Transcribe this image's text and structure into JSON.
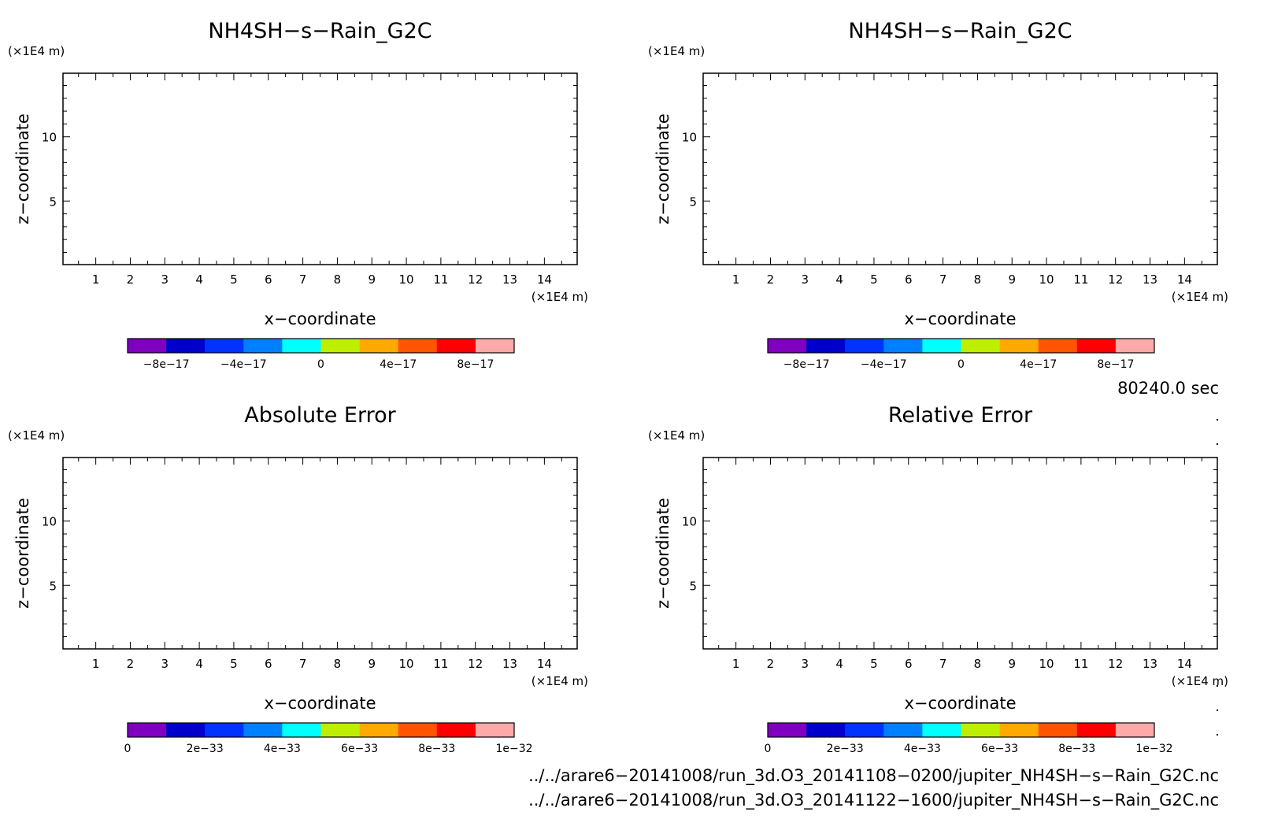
{
  "chart_data": [
    {
      "type": "heatmap",
      "title": "NH4SH−s−Rain_G2C",
      "xlabel": "x−coordinate",
      "ylabel": "z−coordinate",
      "x_unit": "(×1E4 m)",
      "y_unit": "(×1E4 m)",
      "xlim": [
        0.05,
        14.95
      ],
      "ylim": [
        0.05,
        14.95
      ],
      "x_ticks": [
        "1",
        "2",
        "3",
        "4",
        "5",
        "6",
        "7",
        "8",
        "9",
        "10",
        "11",
        "12",
        "13",
        "14"
      ],
      "y_ticks": [
        "5",
        "10"
      ],
      "grid": false,
      "values": [],
      "colorbar": {
        "colors": [
          "#7f00bf",
          "#0000cc",
          "#0033ff",
          "#0080ff",
          "#00ffff",
          "#bfef00",
          "#ffaa00",
          "#ff5500",
          "#ff0000",
          "#ffaaaa"
        ],
        "ticks": [
          "−8e−17",
          "−4e−17",
          "0",
          "4e−17",
          "8e−17"
        ],
        "tick_values": [
          -8e-17,
          -4e-17,
          0,
          4e-17,
          8e-17
        ],
        "range": [
          -1e-16,
          1e-16
        ]
      }
    },
    {
      "type": "heatmap",
      "title": "NH4SH−s−Rain_G2C",
      "xlabel": "x−coordinate",
      "ylabel": "z−coordinate",
      "x_unit": "(×1E4 m)",
      "y_unit": "(×1E4 m)",
      "xlim": [
        0.05,
        14.95
      ],
      "ylim": [
        0.05,
        14.95
      ],
      "x_ticks": [
        "1",
        "2",
        "3",
        "4",
        "5",
        "6",
        "7",
        "8",
        "9",
        "10",
        "11",
        "12",
        "13",
        "14"
      ],
      "y_ticks": [
        "5",
        "10"
      ],
      "grid": false,
      "values": [],
      "colorbar": {
        "colors": [
          "#7f00bf",
          "#0000cc",
          "#0033ff",
          "#0080ff",
          "#00ffff",
          "#bfef00",
          "#ffaa00",
          "#ff5500",
          "#ff0000",
          "#ffaaaa"
        ],
        "ticks": [
          "−8e−17",
          "−4e−17",
          "0",
          "4e−17",
          "8e−17"
        ],
        "tick_values": [
          -8e-17,
          -4e-17,
          0,
          4e-17,
          8e-17
        ],
        "range": [
          -1e-16,
          1e-16
        ]
      }
    },
    {
      "type": "heatmap",
      "title": "Absolute Error",
      "xlabel": "x−coordinate",
      "ylabel": "z−coordinate",
      "x_unit": "(×1E4 m)",
      "y_unit": "(×1E4 m)",
      "xlim": [
        0.05,
        14.95
      ],
      "ylim": [
        0.05,
        14.95
      ],
      "x_ticks": [
        "1",
        "2",
        "3",
        "4",
        "5",
        "6",
        "7",
        "8",
        "9",
        "10",
        "11",
        "12",
        "13",
        "14"
      ],
      "y_ticks": [
        "5",
        "10"
      ],
      "grid": false,
      "values": [],
      "colorbar": {
        "colors": [
          "#7f00bf",
          "#0000cc",
          "#0033ff",
          "#0080ff",
          "#00ffff",
          "#bfef00",
          "#ffaa00",
          "#ff5500",
          "#ff0000",
          "#ffaaaa"
        ],
        "ticks": [
          "0",
          "2e−33",
          "4e−33",
          "6e−33",
          "8e−33",
          "1e−32"
        ],
        "tick_values": [
          0,
          2e-33,
          4e-33,
          6e-33,
          8e-33,
          1e-32
        ],
        "range": [
          0,
          1e-32
        ]
      }
    },
    {
      "type": "heatmap",
      "title": "Relative Error",
      "xlabel": "x−coordinate",
      "ylabel": "z−coordinate",
      "x_unit": "(×1E4 m)",
      "y_unit": "(×1E4 m)",
      "xlim": [
        0.05,
        14.95
      ],
      "ylim": [
        0.05,
        14.95
      ],
      "x_ticks": [
        "1",
        "2",
        "3",
        "4",
        "5",
        "6",
        "7",
        "8",
        "9",
        "10",
        "11",
        "12",
        "13",
        "14"
      ],
      "y_ticks": [
        "5",
        "10"
      ],
      "grid": false,
      "values": [],
      "colorbar": {
        "colors": [
          "#7f00bf",
          "#0000cc",
          "#0033ff",
          "#0080ff",
          "#00ffff",
          "#bfef00",
          "#ffaa00",
          "#ff5500",
          "#ff0000",
          "#ffaaaa"
        ],
        "ticks": [
          "0",
          "2e−33",
          "4e−33",
          "6e−33",
          "8e−33",
          "1e−32"
        ],
        "tick_values": [
          0,
          2e-33,
          4e-33,
          6e-33,
          8e-33,
          1e-32
        ],
        "range": [
          0,
          1e-32
        ]
      }
    }
  ],
  "time_label": "80240.0 sec",
  "files": [
    "../../arare6−20141008/run_3d.O3_20141108−0200/jupiter_NH4SH−s−Rain_G2C.nc",
    "../../arare6−20141008/run_3d.O3_20141122−1600/jupiter_NH4SH−s−Rain_G2C.nc"
  ]
}
